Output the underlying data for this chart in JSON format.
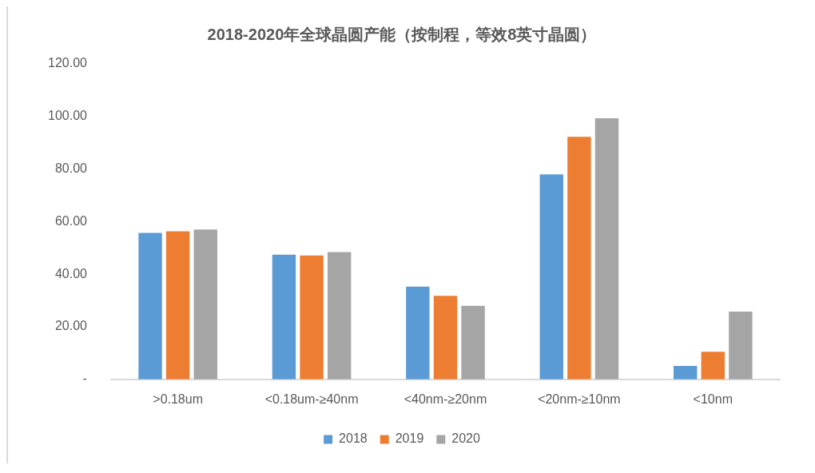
{
  "chart_data": {
    "type": "bar",
    "title": "2018-2020年全球晶圆产能（按制程，等效8英寸晶圆）",
    "categories": [
      ">0.18um",
      "<0.18um-≥40nm",
      "<40nm-≥20nm",
      "<20nm-≥10nm",
      "<10nm"
    ],
    "series": [
      {
        "name": "2018",
        "color": "#5b9bd5",
        "values": [
          55.7,
          47.4,
          35.3,
          78.0,
          5.1
        ]
      },
      {
        "name": "2019",
        "color": "#ed7d31",
        "values": [
          56.3,
          47.1,
          31.8,
          92.3,
          10.5
        ]
      },
      {
        "name": "2020",
        "color": "#a5a5a5",
        "values": [
          57.0,
          48.4,
          28.0,
          99.3,
          25.8
        ]
      }
    ],
    "ylim": [
      0,
      120
    ],
    "yticks": [
      {
        "value": 0,
        "label": "-"
      },
      {
        "value": 20,
        "label": "20.00"
      },
      {
        "value": 40,
        "label": "40.00"
      },
      {
        "value": 60,
        "label": "60.00"
      },
      {
        "value": 80,
        "label": "80.00"
      },
      {
        "value": 100,
        "label": "100.00"
      },
      {
        "value": 120,
        "label": "120.00"
      }
    ],
    "grid": false,
    "legend": "bottom"
  }
}
